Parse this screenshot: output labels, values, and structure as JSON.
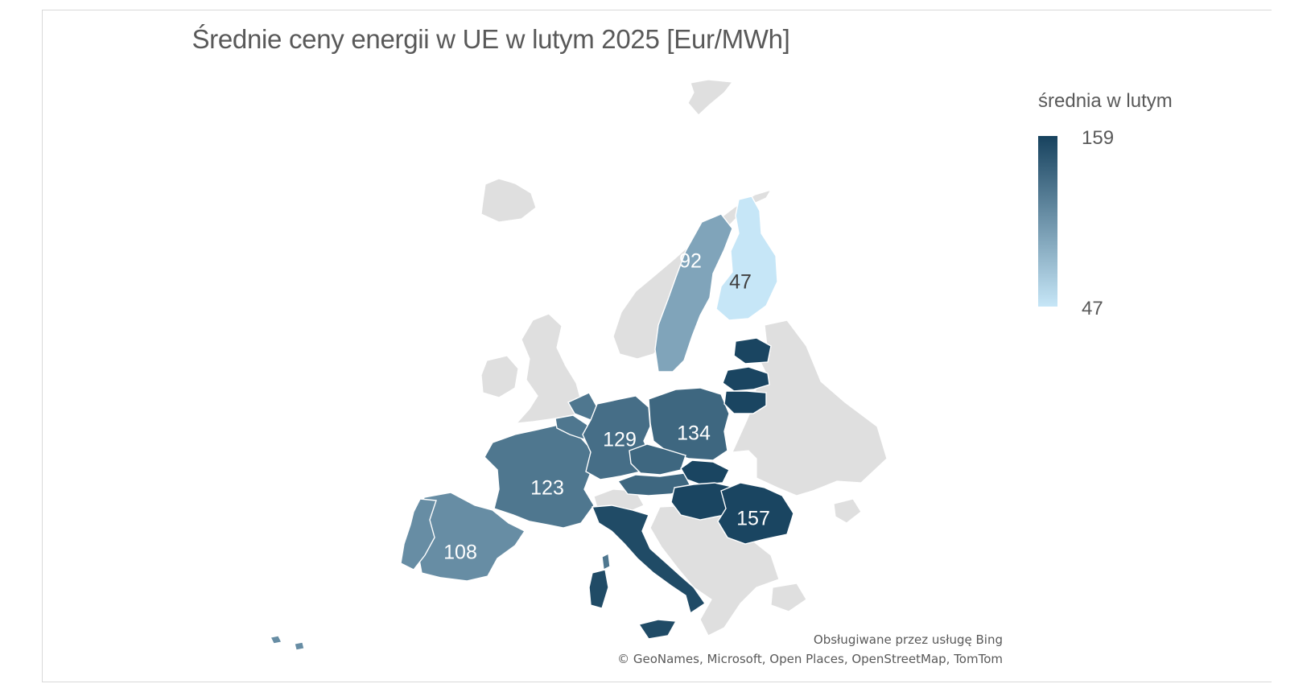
{
  "title": "Średnie ceny energii  w UE w lutym 2025 [Eur/MWh]",
  "legend": {
    "title": "średnia w lutym",
    "max_label": "159",
    "min_label": "47",
    "color_low": "#c6e6f7",
    "color_high": "#17425e"
  },
  "attribution": {
    "line1": "Obsługiwane przez usługę Bing",
    "line2": "© GeoNames,  Microsoft,  Open Places,  OpenStreetMap,  TomTom"
  },
  "colors": {
    "no_data": "#dfdfdf",
    "border": "#ffffff",
    "label_dark": "#404040",
    "label_light": "#ffffff"
  },
  "chart_data": {
    "type": "choropleth",
    "title": "Średnie ceny energii  w UE w lutym 2025 [Eur/MWh]",
    "value_range": [
      47,
      159
    ],
    "regions": [
      {
        "id": "spain",
        "value": 108,
        "label": "108"
      },
      {
        "id": "portugal",
        "value": 108,
        "label": ""
      },
      {
        "id": "france",
        "value": 123,
        "label": "123"
      },
      {
        "id": "belgium",
        "value": 123,
        "label": ""
      },
      {
        "id": "netherlands",
        "value": 123,
        "label": ""
      },
      {
        "id": "germany",
        "value": 129,
        "label": "129"
      },
      {
        "id": "poland",
        "value": 134,
        "label": "134"
      },
      {
        "id": "czechia",
        "value": 134,
        "label": ""
      },
      {
        "id": "austria",
        "value": 134,
        "label": ""
      },
      {
        "id": "slovakia",
        "value": 157,
        "label": ""
      },
      {
        "id": "hungary",
        "value": 157,
        "label": ""
      },
      {
        "id": "romania",
        "value": 157,
        "label": "157"
      },
      {
        "id": "italy",
        "value": 153,
        "label": ""
      },
      {
        "id": "sardinia",
        "value": 153,
        "label": ""
      },
      {
        "id": "sicily",
        "value": 153,
        "label": ""
      },
      {
        "id": "corsica",
        "value": 123,
        "label": ""
      },
      {
        "id": "latvia",
        "value": 157,
        "label": ""
      },
      {
        "id": "lithuania",
        "value": 157,
        "label": ""
      },
      {
        "id": "estonia",
        "value": 157,
        "label": ""
      },
      {
        "id": "sweden",
        "value": 92,
        "label": "92"
      },
      {
        "id": "finland",
        "value": 47,
        "label": "47"
      },
      {
        "id": "azores",
        "value": 108,
        "label": ""
      }
    ]
  }
}
